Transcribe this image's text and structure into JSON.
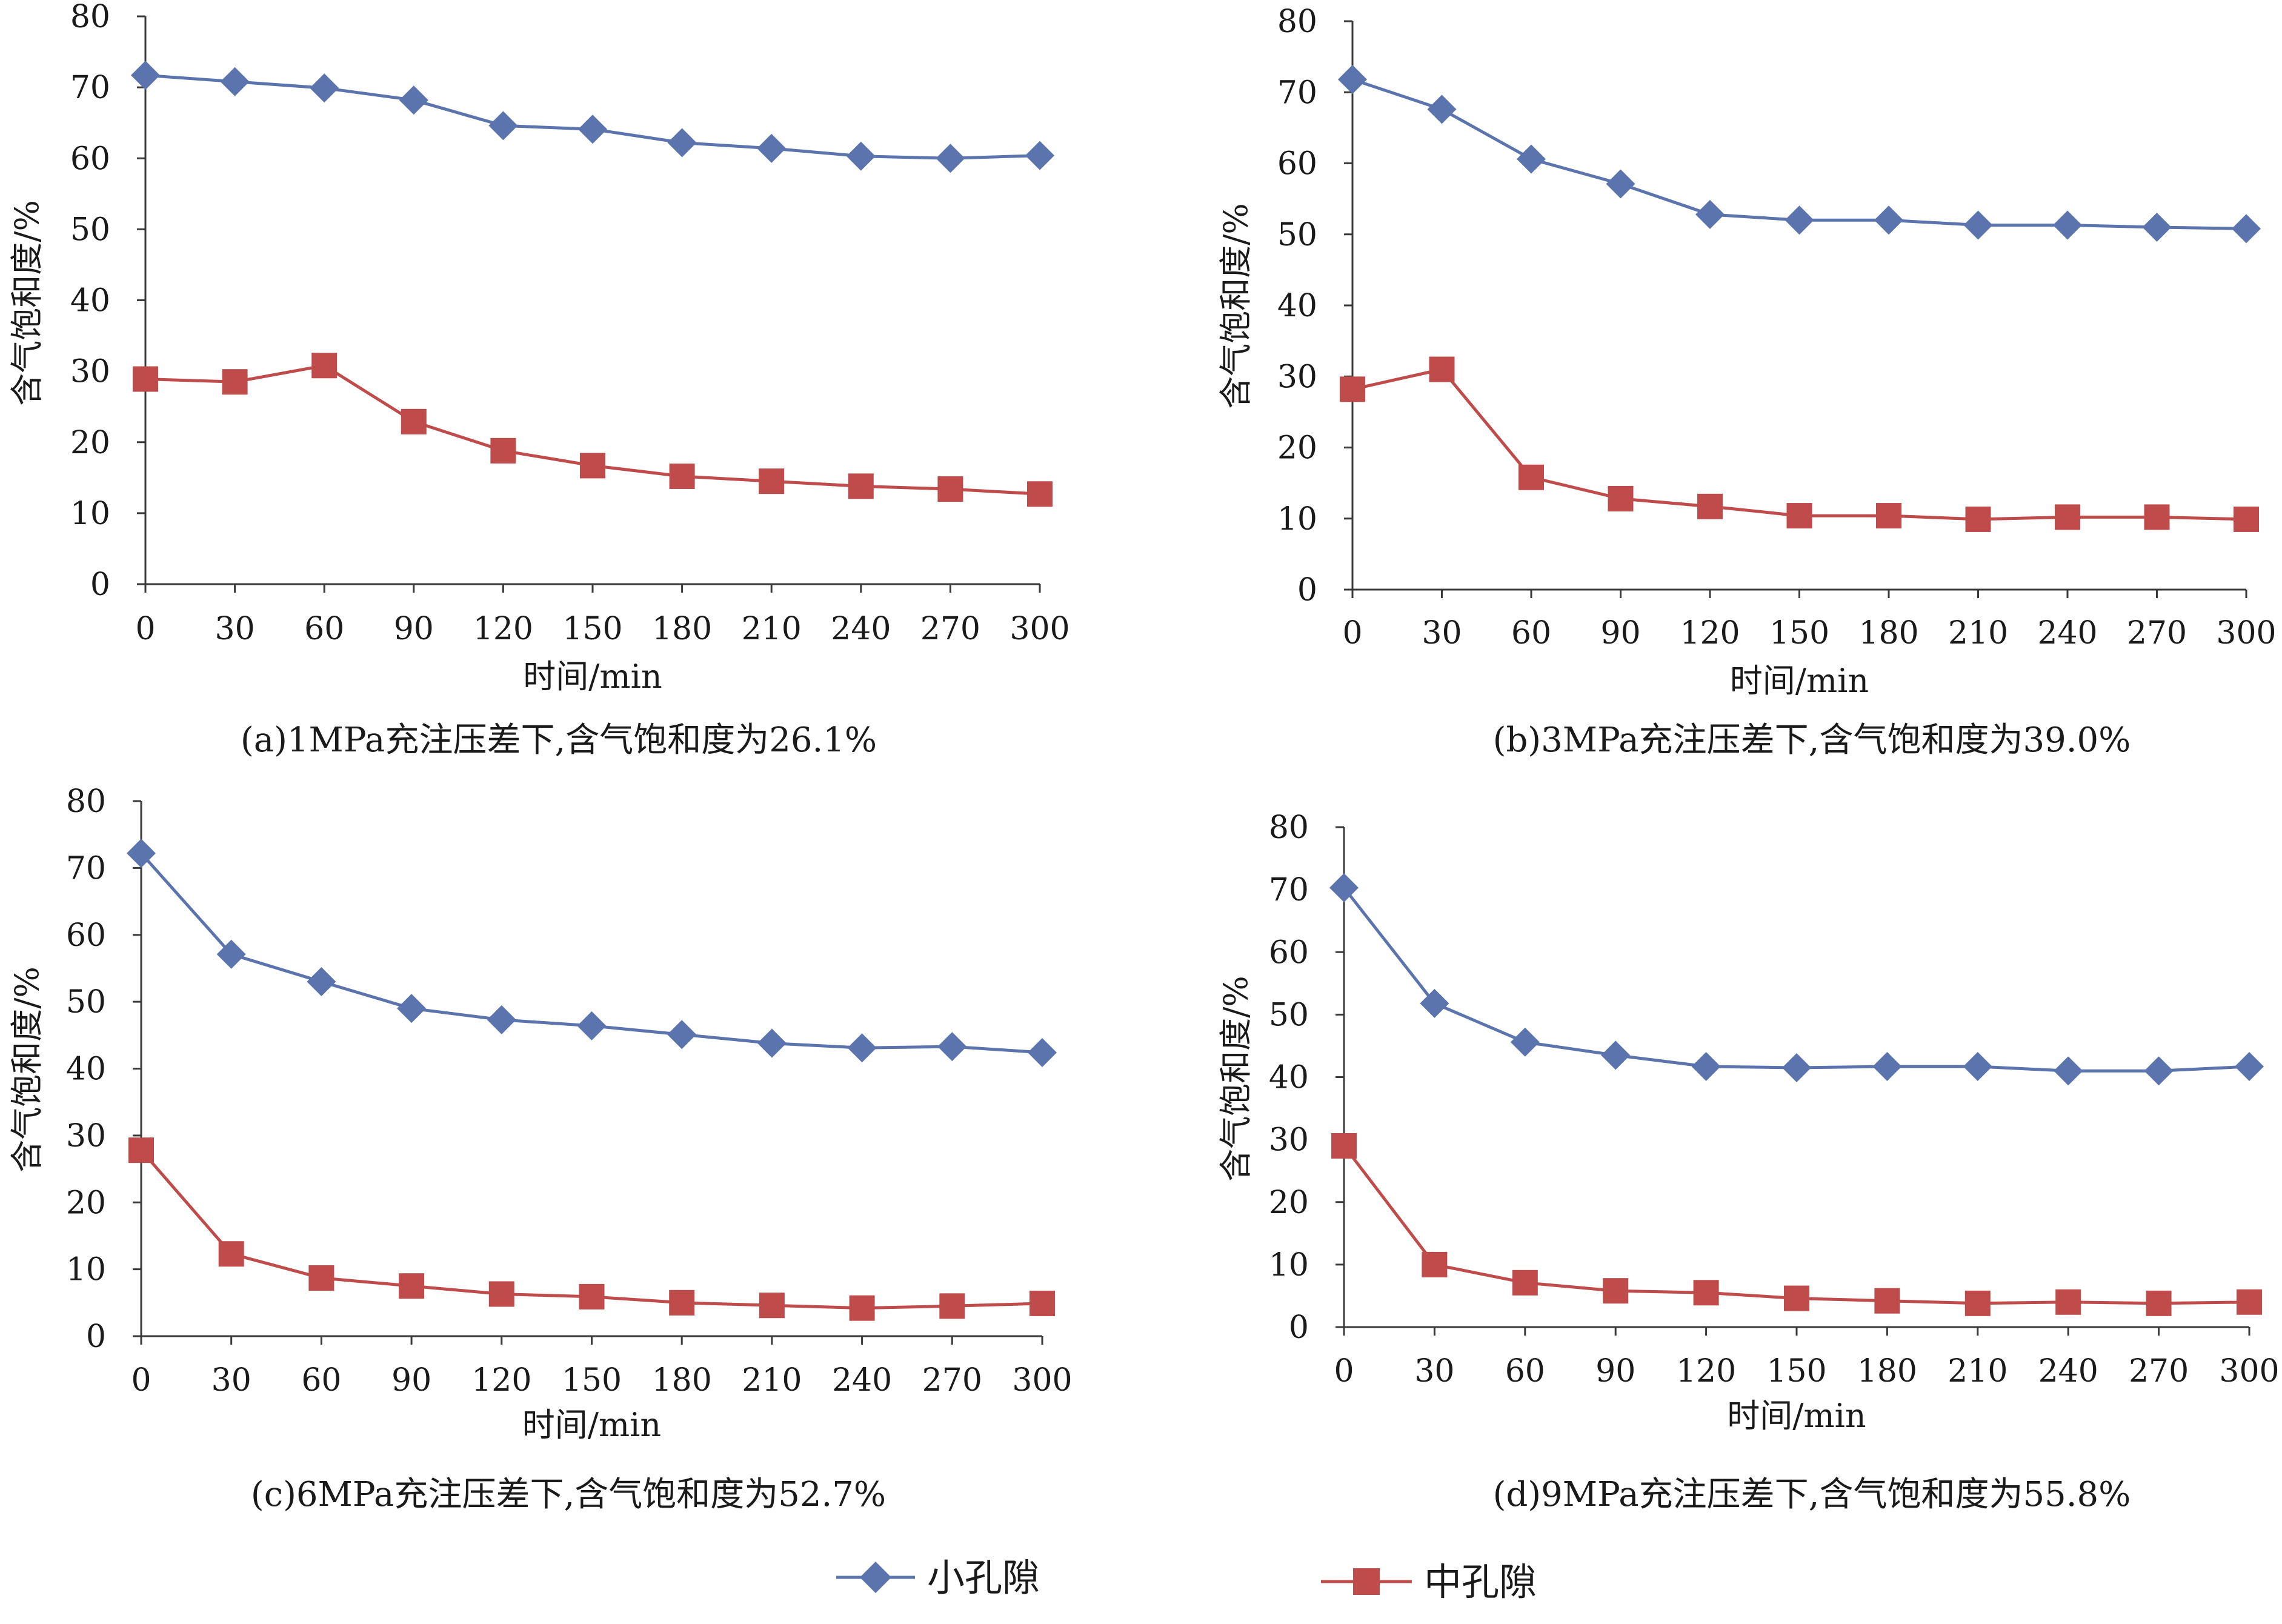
{
  "colors": {
    "small_pore": "#5B74AE",
    "medium_pore": "#BF4B4B",
    "axis": "#3a3a3a",
    "text": "#1a1a1a"
  },
  "legend": {
    "small_pore": "小孔隙",
    "medium_pore": "中孔隙"
  },
  "chart_data": [
    {
      "type": "line",
      "caption": "(a)1MPa充注压差下,含气饱和度为26.1%",
      "xlabel": "时间/min",
      "ylabel": "含气饱和度/%",
      "x": [
        0,
        30,
        60,
        90,
        120,
        150,
        180,
        210,
        240,
        270,
        300
      ],
      "xlim": [
        0,
        300
      ],
      "ylim": [
        0,
        80
      ],
      "yticks": [
        0,
        10,
        20,
        30,
        40,
        50,
        60,
        70,
        80
      ],
      "series": [
        {
          "name": "小孔隙",
          "marker": "diamond",
          "values": [
            71.7,
            70.8,
            69.9,
            68.2,
            64.6,
            64.1,
            62.2,
            61.4,
            60.3,
            60.0,
            60.4
          ]
        },
        {
          "name": "中孔隙",
          "marker": "square",
          "values": [
            28.9,
            28.5,
            30.8,
            22.9,
            18.8,
            16.7,
            15.2,
            14.5,
            13.8,
            13.4,
            12.7
          ]
        }
      ]
    },
    {
      "type": "line",
      "caption": "(b)3MPa充注压差下,含气饱和度为39.0%",
      "xlabel": "时间/min",
      "ylabel": "含气饱和度/%",
      "x": [
        0,
        30,
        60,
        90,
        120,
        150,
        180,
        210,
        240,
        270,
        300
      ],
      "xlim": [
        0,
        300
      ],
      "ylim": [
        0,
        80
      ],
      "yticks": [
        0,
        10,
        20,
        30,
        40,
        50,
        60,
        70,
        80
      ],
      "series": [
        {
          "name": "小孔隙",
          "marker": "diamond",
          "values": [
            71.8,
            67.6,
            60.6,
            57.1,
            52.8,
            52.0,
            52.0,
            51.3,
            51.3,
            51.0,
            50.8
          ]
        },
        {
          "name": "中孔隙",
          "marker": "square",
          "values": [
            28.2,
            31.0,
            15.8,
            12.8,
            11.7,
            10.4,
            10.4,
            9.9,
            10.2,
            10.2,
            9.9
          ]
        }
      ]
    },
    {
      "type": "line",
      "caption": "(c)6MPa充注压差下,含气饱和度为52.7%",
      "xlabel": "时间/min",
      "ylabel": "含气饱和度/%",
      "x": [
        0,
        30,
        60,
        90,
        120,
        150,
        180,
        210,
        240,
        270,
        300
      ],
      "xlim": [
        0,
        300
      ],
      "ylim": [
        0,
        80
      ],
      "yticks": [
        0,
        10,
        20,
        30,
        40,
        50,
        60,
        70,
        80
      ],
      "series": [
        {
          "name": "小孔隙",
          "marker": "diamond",
          "values": [
            72.2,
            57.1,
            53.0,
            49.0,
            47.3,
            46.4,
            45.1,
            43.8,
            43.1,
            43.3,
            42.4
          ]
        },
        {
          "name": "中孔隙",
          "marker": "square",
          "values": [
            27.8,
            12.3,
            8.7,
            7.5,
            6.3,
            5.9,
            5.0,
            4.6,
            4.2,
            4.5,
            4.9
          ]
        }
      ]
    },
    {
      "type": "line",
      "caption": "(d)9MPa充注压差下,含气饱和度为55.8%",
      "xlabel": "时间/min",
      "ylabel": "含气饱和度/%",
      "x": [
        0,
        30,
        60,
        90,
        120,
        150,
        180,
        210,
        240,
        270,
        300
      ],
      "xlim": [
        0,
        300
      ],
      "ylim": [
        0,
        80
      ],
      "yticks": [
        0,
        10,
        20,
        30,
        40,
        50,
        60,
        70,
        80
      ],
      "series": [
        {
          "name": "小孔隙",
          "marker": "diamond",
          "values": [
            70.3,
            51.8,
            45.6,
            43.5,
            41.7,
            41.5,
            41.7,
            41.7,
            41.0,
            41.0,
            41.7
          ]
        },
        {
          "name": "中孔隙",
          "marker": "square",
          "values": [
            29.0,
            10.0,
            7.1,
            5.8,
            5.5,
            4.6,
            4.2,
            3.8,
            4.0,
            3.8,
            4.0
          ]
        }
      ]
    }
  ]
}
